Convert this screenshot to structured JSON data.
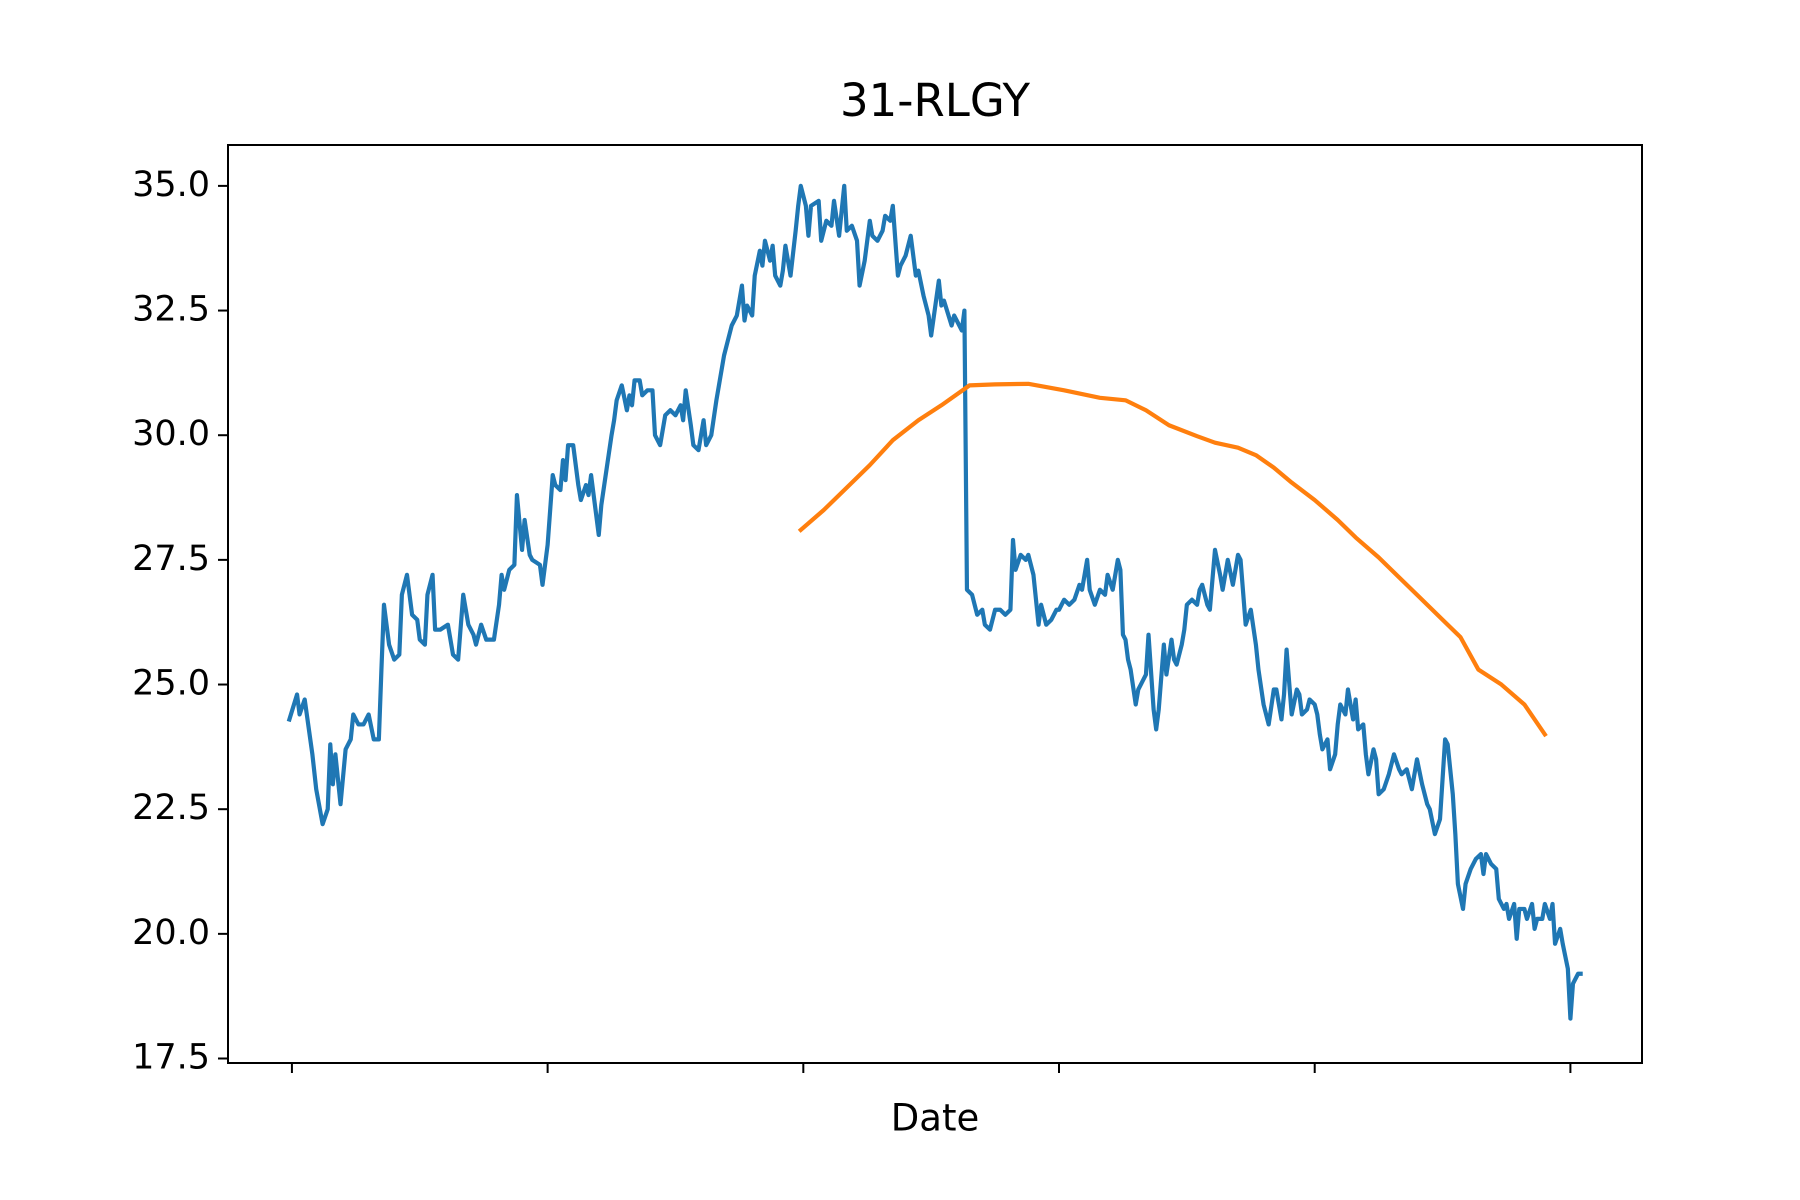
{
  "chart_data": {
    "type": "line",
    "title": "31-RLGY",
    "x_label": "Date",
    "xlim": [
      -25,
      528
    ],
    "xticks": [
      0,
      100,
      200,
      300,
      400,
      500
    ],
    "ylim": [
      17.41,
      35.82
    ],
    "yticks": [
      17.5,
      {
        "value": 20,
        "label": "20.0"
      },
      22.5,
      {
        "value": 25,
        "label": "25.0"
      },
      27.5,
      {
        "value": 30,
        "label": "30.0"
      },
      32.5,
      {
        "value": 35,
        "label": "35.0"
      }
    ],
    "series": [
      {
        "color": "#1f77b4",
        "x": [
          -1,
          2,
          3,
          5,
          8,
          9.5,
          12,
          14,
          15,
          16,
          17,
          19,
          21,
          23,
          24,
          26,
          28,
          30,
          32,
          34,
          35,
          36,
          38,
          40,
          42,
          43,
          45,
          47,
          49,
          50,
          52,
          53,
          55,
          56,
          58,
          61,
          63,
          65,
          67,
          69,
          71,
          72,
          74,
          76,
          79,
          81,
          82,
          83,
          85,
          87,
          88,
          90,
          91,
          93,
          94,
          97,
          98,
          100,
          102,
          103,
          105,
          106,
          107,
          108,
          110,
          112,
          113,
          115,
          116,
          117,
          119,
          120,
          121,
          123,
          125,
          126,
          127,
          129,
          131,
          132,
          133,
          134,
          136,
          137,
          139,
          141,
          142,
          144,
          146,
          148,
          150,
          152,
          153,
          154,
          156,
          157,
          159,
          161,
          162,
          164,
          166,
          167,
          169,
          171,
          172,
          174,
          176,
          177,
          178,
          180,
          181,
          183,
          184,
          185,
          187,
          188,
          189,
          191,
          192,
          193,
          195,
          197,
          198,
          199,
          201,
          202,
          203,
          206,
          207,
          209,
          211,
          212,
          214,
          216,
          217,
          219,
          221,
          222,
          224,
          226,
          227,
          229,
          231,
          232,
          234,
          235,
          237,
          238,
          240,
          242,
          244,
          245,
          247,
          249,
          250,
          253,
          254,
          255,
          258,
          259,
          262,
          263,
          264,
          266,
          267,
          268,
          270,
          271,
          273,
          275,
          277,
          279,
          281,
          282,
          283,
          285,
          287,
          288,
          290,
          292,
          293,
          295,
          297,
          299,
          300,
          302,
          304,
          306,
          308,
          309,
          311,
          312,
          314,
          316,
          318,
          319,
          321,
          323,
          324,
          325,
          326,
          327,
          328,
          330,
          331,
          332,
          334,
          335,
          337,
          338,
          339,
          341,
          342,
          344,
          345,
          346,
          348,
          349,
          350,
          352,
          354,
          355,
          356,
          358,
          359,
          361,
          363,
          364,
          366,
          368,
          370,
          371,
          373,
          375,
          377,
          378,
          380,
          382,
          384,
          385,
          387,
          388,
          389,
          391,
          393,
          394,
          395,
          397,
          398,
          400,
          401,
          402,
          403,
          405,
          406,
          408,
          409,
          410,
          412,
          413,
          415,
          416,
          417,
          419,
          420,
          421,
          423,
          424,
          425,
          427,
          429,
          431,
          433,
          434,
          436,
          438,
          440,
          442,
          444,
          445,
          447,
          449,
          451,
          452,
          454,
          455,
          456,
          458,
          459,
          461,
          463,
          465,
          466,
          467,
          469,
          471,
          472,
          474,
          475,
          476,
          478,
          479,
          480,
          482,
          483,
          485,
          486,
          487,
          489,
          490,
          492,
          493,
          494,
          496,
          497,
          499,
          500,
          501,
          503,
          504
        ],
        "values": [
          24.3,
          24.8,
          24.4,
          24.7,
          23.6,
          22.9,
          22.2,
          22.5,
          23.8,
          23.0,
          23.6,
          22.6,
          23.7,
          23.9,
          24.4,
          24.2,
          24.2,
          24.4,
          23.9,
          23.9,
          25.3,
          26.6,
          25.8,
          25.5,
          25.6,
          26.8,
          27.2,
          26.4,
          26.3,
          25.9,
          25.8,
          26.8,
          27.2,
          26.1,
          26.1,
          26.2,
          25.6,
          25.5,
          26.8,
          26.2,
          26.0,
          25.8,
          26.2,
          25.9,
          25.9,
          26.6,
          27.2,
          26.9,
          27.3,
          27.4,
          28.8,
          27.7,
          28.3,
          27.6,
          27.5,
          27.4,
          27.0,
          27.8,
          29.2,
          29.0,
          28.9,
          29.5,
          29.1,
          29.8,
          29.8,
          29.0,
          28.7,
          29.0,
          28.8,
          29.2,
          28.4,
          28.0,
          28.6,
          29.3,
          30.0,
          30.3,
          30.7,
          31.0,
          30.5,
          30.8,
          30.6,
          31.1,
          31.1,
          30.8,
          30.9,
          30.9,
          30.0,
          29.8,
          30.4,
          30.5,
          30.4,
          30.6,
          30.3,
          30.9,
          30.2,
          29.8,
          29.7,
          30.3,
          29.8,
          30.0,
          30.7,
          31.0,
          31.6,
          32.0,
          32.2,
          32.4,
          33.0,
          32.3,
          32.6,
          32.4,
          33.2,
          33.7,
          33.4,
          33.9,
          33.5,
          33.8,
          33.2,
          33.0,
          33.3,
          33.8,
          33.2,
          34.1,
          34.6,
          35.0,
          34.6,
          34.0,
          34.6,
          34.7,
          33.9,
          34.3,
          34.2,
          34.7,
          34.0,
          35.0,
          34.1,
          34.2,
          33.9,
          33.0,
          33.5,
          34.3,
          34.0,
          33.9,
          34.1,
          34.4,
          34.3,
          34.6,
          33.2,
          33.4,
          33.6,
          34.0,
          33.2,
          33.3,
          32.8,
          32.4,
          32.0,
          33.1,
          32.6,
          32.7,
          32.2,
          32.4,
          32.1,
          32.5,
          26.9,
          26.8,
          26.6,
          26.4,
          26.5,
          26.2,
          26.1,
          26.5,
          26.5,
          26.4,
          26.5,
          27.9,
          27.3,
          27.6,
          27.5,
          27.6,
          27.2,
          26.2,
          26.6,
          26.2,
          26.3,
          26.5,
          26.5,
          26.7,
          26.6,
          26.7,
          27.0,
          26.9,
          27.5,
          26.9,
          26.6,
          26.9,
          26.8,
          27.2,
          26.9,
          27.5,
          27.3,
          26.0,
          25.9,
          25.5,
          25.3,
          24.6,
          24.9,
          25.0,
          25.2,
          26.0,
          24.5,
          24.1,
          24.5,
          25.8,
          25.2,
          25.9,
          25.5,
          25.4,
          25.8,
          26.1,
          26.6,
          26.7,
          26.6,
          26.9,
          27.0,
          26.6,
          26.5,
          27.7,
          27.2,
          26.9,
          27.5,
          27.0,
          27.6,
          27.5,
          26.2,
          26.5,
          25.8,
          25.3,
          24.6,
          24.2,
          24.9,
          24.9,
          24.3,
          24.8,
          25.7,
          24.4,
          24.9,
          24.8,
          24.4,
          24.5,
          24.7,
          24.6,
          24.4,
          24.0,
          23.7,
          23.9,
          23.3,
          23.6,
          24.2,
          24.6,
          24.4,
          24.9,
          24.3,
          24.7,
          24.1,
          24.2,
          23.6,
          23.2,
          23.7,
          23.5,
          22.8,
          22.9,
          23.2,
          23.6,
          23.3,
          23.2,
          23.3,
          22.9,
          23.5,
          23.0,
          22.6,
          22.5,
          22.0,
          22.3,
          23.9,
          23.8,
          22.8,
          22.0,
          21.0,
          20.5,
          21.0,
          21.3,
          21.5,
          21.6,
          21.2,
          21.6,
          21.4,
          21.3,
          20.7,
          20.5,
          20.6,
          20.3,
          20.6,
          19.9,
          20.5,
          20.5,
          20.3,
          20.6,
          20.1,
          20.3,
          20.3,
          20.6,
          20.3,
          20.6,
          19.8,
          20.1,
          19.8,
          19.3,
          18.3,
          19.0,
          19.2,
          19.2
        ]
      },
      {
        "color": "#ff7f0e",
        "x": [
          199,
          208,
          218,
          226,
          235,
          245,
          254,
          265,
          275,
          288,
          302,
          316,
          326,
          334,
          343,
          354,
          361,
          370,
          377,
          384,
          391,
          400,
          409,
          416,
          425,
          432,
          441,
          450,
          457,
          464,
          473,
          482,
          490
        ],
        "values": [
          28.1,
          28.5,
          29.0,
          29.4,
          29.9,
          30.3,
          30.6,
          31.0,
          31.02,
          31.03,
          30.9,
          30.75,
          30.7,
          30.5,
          30.2,
          29.98,
          29.85,
          29.75,
          29.6,
          29.35,
          29.05,
          28.7,
          28.3,
          27.95,
          27.55,
          27.2,
          26.75,
          26.3,
          25.95,
          25.3,
          25.0,
          24.6,
          24.0
        ]
      }
    ]
  }
}
